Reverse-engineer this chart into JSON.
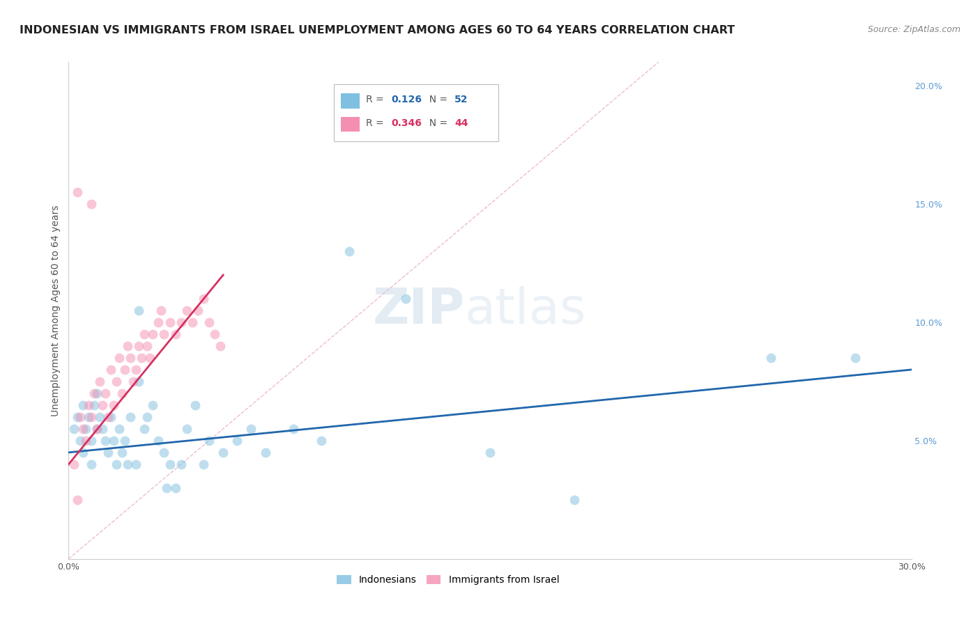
{
  "title": "INDONESIAN VS IMMIGRANTS FROM ISRAEL UNEMPLOYMENT AMONG AGES 60 TO 64 YEARS CORRELATION CHART",
  "source": "Source: ZipAtlas.com",
  "ylabel": "Unemployment Among Ages 60 to 64 years",
  "xlim": [
    0.0,
    0.3
  ],
  "ylim": [
    0.0,
    0.21
  ],
  "x_tick_positions": [
    0.0,
    0.05,
    0.1,
    0.15,
    0.2,
    0.25,
    0.3
  ],
  "x_tick_labels": [
    "0.0%",
    "",
    "",
    "",
    "",
    "",
    "30.0%"
  ],
  "y_ticks_right": [
    0.05,
    0.1,
    0.15,
    0.2
  ],
  "y_tick_labels_right": [
    "5.0%",
    "10.0%",
    "15.0%",
    "20.0%"
  ],
  "r1": "0.126",
  "n1": "52",
  "r2": "0.346",
  "n2": "44",
  "watermark_zip": "ZIP",
  "watermark_atlas": "atlas",
  "indonesians_x": [
    0.002,
    0.003,
    0.004,
    0.005,
    0.005,
    0.006,
    0.007,
    0.008,
    0.008,
    0.009,
    0.01,
    0.01,
    0.011,
    0.012,
    0.013,
    0.014,
    0.015,
    0.016,
    0.017,
    0.018,
    0.019,
    0.02,
    0.021,
    0.022,
    0.024,
    0.025,
    0.027,
    0.028,
    0.03,
    0.032,
    0.034,
    0.036,
    0.038,
    0.04,
    0.042,
    0.045,
    0.048,
    0.05,
    0.055,
    0.06,
    0.065,
    0.07,
    0.08,
    0.09,
    0.1,
    0.12,
    0.15,
    0.18,
    0.25,
    0.28,
    0.025,
    0.035
  ],
  "indonesians_y": [
    0.055,
    0.06,
    0.05,
    0.045,
    0.065,
    0.055,
    0.06,
    0.05,
    0.04,
    0.065,
    0.07,
    0.055,
    0.06,
    0.055,
    0.05,
    0.045,
    0.06,
    0.05,
    0.04,
    0.055,
    0.045,
    0.05,
    0.04,
    0.06,
    0.04,
    0.075,
    0.055,
    0.06,
    0.065,
    0.05,
    0.045,
    0.04,
    0.03,
    0.04,
    0.055,
    0.065,
    0.04,
    0.05,
    0.045,
    0.05,
    0.055,
    0.045,
    0.055,
    0.05,
    0.13,
    0.11,
    0.045,
    0.025,
    0.085,
    0.085,
    0.105,
    0.03
  ],
  "israel_x": [
    0.002,
    0.003,
    0.004,
    0.005,
    0.006,
    0.007,
    0.008,
    0.009,
    0.01,
    0.011,
    0.012,
    0.013,
    0.014,
    0.015,
    0.016,
    0.017,
    0.018,
    0.019,
    0.02,
    0.021,
    0.022,
    0.023,
    0.024,
    0.025,
    0.026,
    0.027,
    0.028,
    0.029,
    0.03,
    0.032,
    0.033,
    0.034,
    0.036,
    0.038,
    0.04,
    0.042,
    0.044,
    0.046,
    0.048,
    0.05,
    0.052,
    0.054,
    0.003,
    0.008
  ],
  "israel_y": [
    0.04,
    0.025,
    0.06,
    0.055,
    0.05,
    0.065,
    0.06,
    0.07,
    0.055,
    0.075,
    0.065,
    0.07,
    0.06,
    0.08,
    0.065,
    0.075,
    0.085,
    0.07,
    0.08,
    0.09,
    0.085,
    0.075,
    0.08,
    0.09,
    0.085,
    0.095,
    0.09,
    0.085,
    0.095,
    0.1,
    0.105,
    0.095,
    0.1,
    0.095,
    0.1,
    0.105,
    0.1,
    0.105,
    0.11,
    0.1,
    0.095,
    0.09,
    0.155,
    0.15
  ],
  "blue_line_x": [
    0.0,
    0.3
  ],
  "blue_line_y": [
    0.045,
    0.08
  ],
  "pink_line_x": [
    0.0,
    0.055
  ],
  "pink_line_y": [
    0.04,
    0.12
  ],
  "diag_line_x": [
    0.0,
    0.21
  ],
  "diag_line_y": [
    0.0,
    0.21
  ],
  "scatter_size": 100,
  "scatter_alpha": 0.5,
  "indonesian_color": "#7fbfdf",
  "israel_color": "#f48fb1",
  "blue_line_color": "#2166ac",
  "pink_line_color": "#d63060",
  "diag_line_color": "#e8a0b0",
  "grid_color": "#d0d0d0",
  "background_color": "#ffffff",
  "title_fontsize": 11.5,
  "source_fontsize": 9,
  "axis_label_fontsize": 10,
  "tick_fontsize": 9,
  "right_tick_color": "#5b9bd5"
}
